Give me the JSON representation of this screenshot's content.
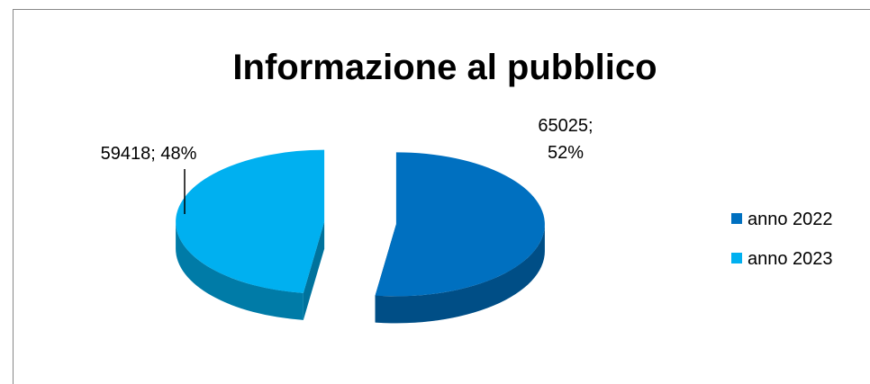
{
  "chart_data": {
    "type": "pie",
    "title": "Informazione al pubblico",
    "categories": [
      "anno 2022",
      "anno 2023"
    ],
    "values": [
      65025,
      59418
    ],
    "value_labels": [
      "65025; 52%",
      "59418; 48%"
    ],
    "colors": [
      "#0070c0",
      "#00b0f0"
    ]
  }
}
